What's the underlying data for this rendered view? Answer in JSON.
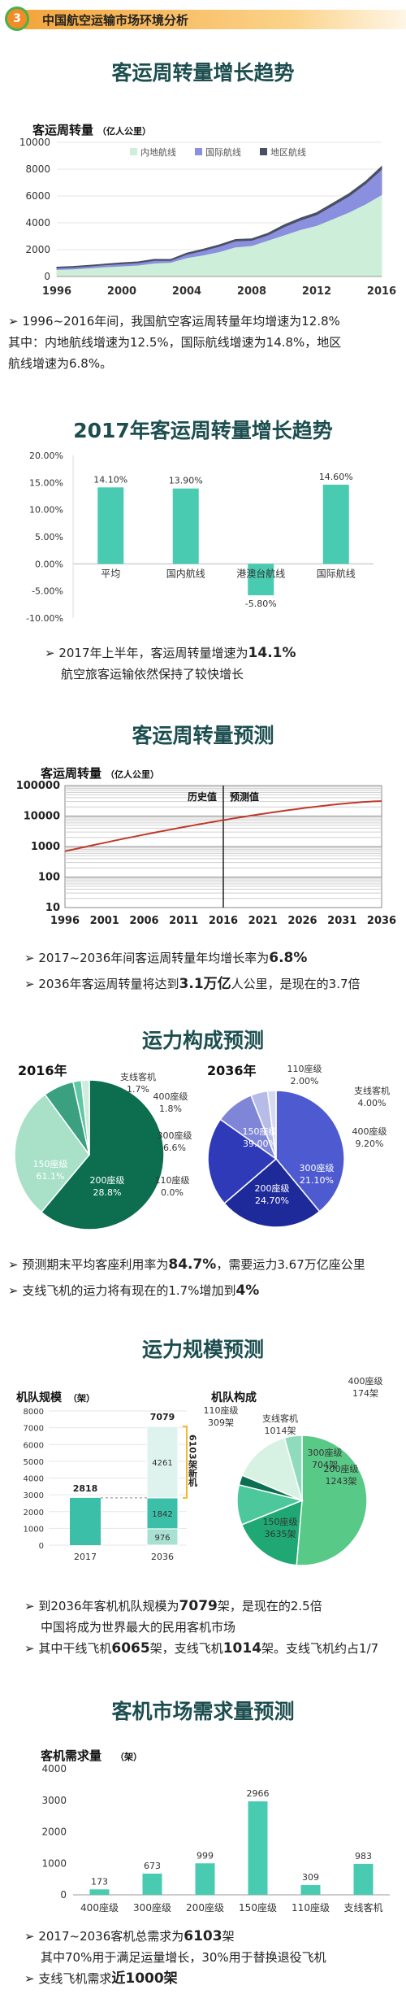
{
  "header": {
    "badge": "3",
    "title": "中国航空运输市场环境分析"
  },
  "sections": {
    "s1_title": "客运周转量增长趋势",
    "s2_title": "2017年客运周转量增长趋势",
    "s3_title": "客运周转量预测",
    "s4_title": "运力构成预测",
    "s5_title": "运力规模预测",
    "s6_title": "客机市场需求量预测"
  },
  "notes": {
    "n1_l1": "1996~2016年间，我国航空客运周转量年均增速为12.8%",
    "n1_l2": "其中：内地航线增速为12.5%，国际航线增速为14.8%，地区",
    "n1_l3": "航线增速为6.8%。",
    "n2_pre": "2017年上半年，客运周转量增速为",
    "n2_val": "14.1%",
    "n2_l2": "航空旅客运输依然保持了较快增长",
    "n3_pre": "2017~2036年间客运周转量年均增长率为",
    "n3_val": "6.8%",
    "n4_pre": "2036年客运周转量将达到",
    "n4_val": "3.1万亿",
    "n4_post": "人公里，是现在的3.7倍",
    "n5_pre": "预测期末平均客座利用率为",
    "n5_val": "84.7%",
    "n5_post": "，需要运力3.67万亿座公里",
    "n6_pre": "支线飞机的运力将有现在的1.7%增加到",
    "n6_val": "4%",
    "n7_pre": "到2036年客机机队规模为",
    "n7_val": "7079",
    "n7_post": "架，是现在的2.5倍",
    "n7_l2": "中国将成为世界最大的民用客机市场",
    "n8_pre": "其中干线飞机",
    "n8_v1": "6065",
    "n8_mid": "架，支线飞机",
    "n8_v2": "1014",
    "n8_post": "架。支线飞机约占1/7",
    "n9_pre": "2017~2036客机总需求为",
    "n9_val": "6103",
    "n9_post": "架",
    "n9_l2": "其中70%用于满足运量增长，30%用于替换退役飞机",
    "n10_pre": "支线飞机需求",
    "n10_val": "近1000架"
  },
  "chart_data": [
    {
      "type": "area",
      "ylabel": "客运周转量",
      "yunit": "（亿人公里）",
      "legend": [
        "内地航线",
        "国际航线",
        "地区航线"
      ],
      "x": [
        1996,
        1997,
        1998,
        1999,
        2000,
        2001,
        2002,
        2003,
        2004,
        2005,
        2006,
        2007,
        2008,
        2009,
        2010,
        2011,
        2012,
        2013,
        2014,
        2015,
        2016
      ],
      "series": [
        {
          "name": "内地航线",
          "values": [
            520,
            560,
            640,
            720,
            780,
            850,
            1000,
            1050,
            1400,
            1600,
            1850,
            2200,
            2300,
            2700,
            3100,
            3500,
            3800,
            4300,
            4800,
            5400,
            6100
          ]
        },
        {
          "name": "国际航线",
          "values": [
            120,
            130,
            130,
            150,
            170,
            170,
            200,
            150,
            250,
            330,
            400,
            450,
            400,
            400,
            600,
            700,
            800,
            1000,
            1200,
            1500,
            1900
          ]
        },
        {
          "name": "地区航线",
          "values": [
            60,
            60,
            60,
            60,
            70,
            70,
            80,
            70,
            90,
            100,
            110,
            110,
            110,
            120,
            150,
            150,
            160,
            170,
            180,
            180,
            200
          ]
        }
      ],
      "ylim": [
        0,
        10000
      ],
      "yticks": [
        0,
        2000,
        4000,
        6000,
        8000,
        10000
      ],
      "xticks": [
        1996,
        2000,
        2004,
        2008,
        2012,
        2016
      ],
      "colors": [
        "#cdeed8",
        "#8b8fdf",
        "#4a5060"
      ]
    },
    {
      "type": "bar",
      "categories": [
        "平均",
        "国内航线",
        "港澳台航线",
        "国际航线"
      ],
      "values": [
        14.1,
        13.9,
        -5.8,
        14.6
      ],
      "labels": [
        "14.10%",
        "13.90%",
        "-5.80%",
        "14.60%"
      ],
      "ylim": [
        -10,
        20
      ],
      "yticks": [
        "20.00%",
        "15.00%",
        "10.00%",
        "5.00%",
        "0.00%",
        "-5.00%",
        "-10.00%"
      ],
      "color": "#48cbb0"
    },
    {
      "type": "line",
      "ylabel": "客运周转量",
      "yunit": "（亿人公里）",
      "log": true,
      "yticks": [
        "100000",
        "10000",
        "1000",
        "100",
        "10"
      ],
      "xticks": [
        1996,
        2001,
        2006,
        2011,
        2016,
        2021,
        2026,
        2031,
        2036
      ],
      "annotations": [
        "历史值",
        "预测值"
      ],
      "start": [
        1996,
        700
      ],
      "end": [
        2036,
        31000
      ],
      "split_year": 2016,
      "color": "#c0392b"
    },
    {
      "type": "pie",
      "title": "2016年",
      "slices": [
        {
          "label": "150座级",
          "pct": "61.1%",
          "value": 61.1,
          "color": "#0c6e4f"
        },
        {
          "label": "200座级",
          "pct": "28.8%",
          "value": 28.8,
          "color": "#a8e0c8"
        },
        {
          "label": "300座级",
          "pct": "6.6%",
          "value": 6.6,
          "color": "#3aa080"
        },
        {
          "label": "400座级",
          "pct": "1.8%",
          "value": 1.8,
          "color": "#60c7a4"
        },
        {
          "label": "支线客机",
          "pct": "1.7%",
          "value": 1.7,
          "color": "#cdeedd"
        },
        {
          "label": "110座级",
          "pct": "0.0%",
          "value": 0.0,
          "color": "#ffffff"
        }
      ]
    },
    {
      "type": "pie",
      "title": "2036年",
      "slices": [
        {
          "label": "150座级",
          "pct": "39.00%",
          "value": 39.0,
          "color": "#4e5ad0"
        },
        {
          "label": "200座级",
          "pct": "24.70%",
          "value": 24.7,
          "color": "#1f2a9a"
        },
        {
          "label": "300座级",
          "pct": "21.10%",
          "value": 21.1,
          "color": "#2f3ab8"
        },
        {
          "label": "400座级",
          "pct": "9.20%",
          "value": 9.2,
          "color": "#7f86d8"
        },
        {
          "label": "支线客机",
          "pct": "4.00%",
          "value": 4.0,
          "color": "#b6bbe8"
        },
        {
          "label": "110座级",
          "pct": "2.00%",
          "value": 2.0,
          "color": "#d6d9f2"
        }
      ]
    },
    {
      "type": "bar",
      "ylabel": "机队规模",
      "yunit": "（架）",
      "categories": [
        "2017",
        "2036"
      ],
      "stack_2036": [
        {
          "label": "976",
          "value": 976,
          "color": "#a8e0d2"
        },
        {
          "label": "1842",
          "value": 1842,
          "color": "#3cbfa8"
        },
        {
          "label": "4261",
          "value": 4261,
          "color": "#dff3ee"
        }
      ],
      "value_2017": 2818,
      "total_labels": [
        "2818",
        "7079"
      ],
      "bracket": "6103架新机",
      "ylim": [
        0,
        8000
      ],
      "yticks": [
        0,
        1000,
        2000,
        3000,
        4000,
        5000,
        6000,
        7000,
        8000
      ],
      "color": "#3cbfa8"
    },
    {
      "type": "pie",
      "title": "机队构成",
      "slices": [
        {
          "label": "150座级",
          "num": "3635架",
          "value": 3635,
          "color": "#58c986"
        },
        {
          "label": "200座级",
          "num": "1243架",
          "value": 1243,
          "color": "#1fa874"
        },
        {
          "label": "300座级",
          "num": "704架",
          "value": 704,
          "color": "#4cc89c"
        },
        {
          "label": "400座级",
          "num": "174架",
          "value": 174,
          "color": "#0d6e52"
        },
        {
          "label": "支线客机",
          "num": "1014架",
          "value": 1014,
          "color": "#d7f1e3"
        },
        {
          "label": "110座级",
          "num": "309架",
          "value": 309,
          "color": "#8edcbd"
        }
      ]
    },
    {
      "type": "bar",
      "ylabel": "客机需求量",
      "yunit": "（架）",
      "categories": [
        "400座级",
        "300座级",
        "200座级",
        "150座级",
        "110座级",
        "支线客机"
      ],
      "values": [
        173,
        673,
        999,
        2966,
        309,
        983
      ],
      "ylim": [
        0,
        4000
      ],
      "yticks": [
        0,
        1000,
        2000,
        3000,
        4000
      ],
      "color": "#48cbb0"
    }
  ]
}
